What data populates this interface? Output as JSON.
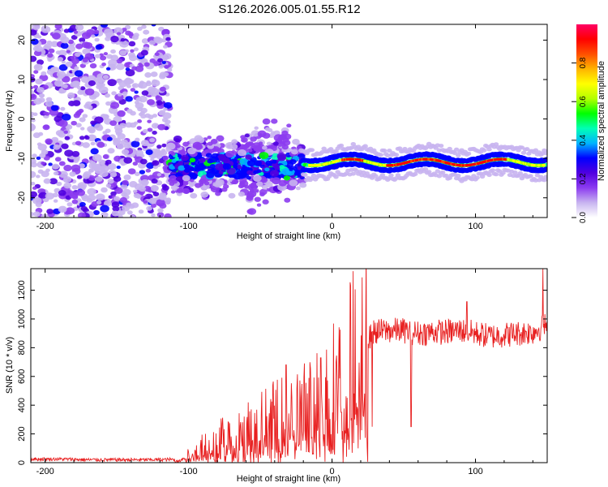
{
  "title": "S126.2026.005.01.55.R12",
  "chart_data": [
    {
      "type": "heatmap",
      "xlabel": "Height of straight line (km)",
      "ylabel": "Frequency (Hz)",
      "xlim": [
        -210,
        150
      ],
      "ylim": [
        -25,
        24
      ],
      "xticks": [
        -200,
        -100,
        0,
        100
      ],
      "yticks": [
        20,
        10,
        0,
        -10,
        -20
      ],
      "colorbar": {
        "label": "Normalized spectral amplitude",
        "range": [
          0,
          1
        ],
        "ticks": [
          "0.0",
          "0.2",
          "0.4",
          "0.6",
          "0.8"
        ],
        "tick_values": [
          0.0,
          0.2,
          0.4,
          0.6,
          0.8
        ],
        "colors": [
          "#ffffff",
          "#c8b4f0",
          "#8c3cf0",
          "#5000e0",
          "#0000ff",
          "#00b4ff",
          "#00ffb4",
          "#00ff00",
          "#b4ff00",
          "#ffff00",
          "#ffb400",
          "#ff5000",
          "#ff0000",
          "#ff0064"
        ]
      },
      "regions": [
        {
          "name": "noise",
          "x": [
            -210,
            -113
          ],
          "freq": [
            -25,
            24
          ],
          "amplitude": 0.15
        },
        {
          "name": "onset",
          "x": [
            -113,
            -20
          ],
          "freq_center": -12,
          "freq_spread": 5,
          "amplitude": 0.45
        },
        {
          "name": "tone",
          "x": [
            -20,
            150
          ],
          "freq_center": -11,
          "amplitude": 0.9
        }
      ]
    },
    {
      "type": "line",
      "xlabel": "Height of straight line (km)",
      "ylabel": "SNR (10 * v/v)",
      "xlim": [
        -210,
        150
      ],
      "ylim": [
        0,
        1350
      ],
      "xticks": [
        -200,
        -100,
        0,
        100
      ],
      "yticks": [
        0,
        200,
        400,
        600,
        800,
        1000,
        1200
      ],
      "series": [
        {
          "name": "SNR",
          "color": "#e82020",
          "x": [
            -210,
            -190,
            -170,
            -150,
            -130,
            -110,
            -100,
            -90,
            -80,
            -70,
            -60,
            -50,
            -40,
            -30,
            -20,
            -10,
            0,
            10,
            20,
            25,
            28,
            30,
            40,
            50,
            60,
            70,
            80,
            90,
            100,
            110,
            120,
            130,
            140,
            150
          ],
          "y": [
            25,
            25,
            20,
            20,
            20,
            22,
            60,
            120,
            160,
            200,
            240,
            280,
            310,
            330,
            380,
            440,
            540,
            660,
            790,
            850,
            900,
            910,
            920,
            920,
            900,
            910,
            910,
            920,
            900,
            880,
            890,
            900,
            910,
            960
          ],
          "spikes": [
            {
              "x": -32,
              "y": 680
            },
            {
              "x": -8,
              "y": 730
            },
            {
              "x": 28,
              "y": 250
            },
            {
              "x": 55,
              "y": 250
            },
            {
              "x": 94,
              "y": 1120
            },
            {
              "x": 147,
              "y": 1350
            }
          ]
        }
      ]
    }
  ]
}
